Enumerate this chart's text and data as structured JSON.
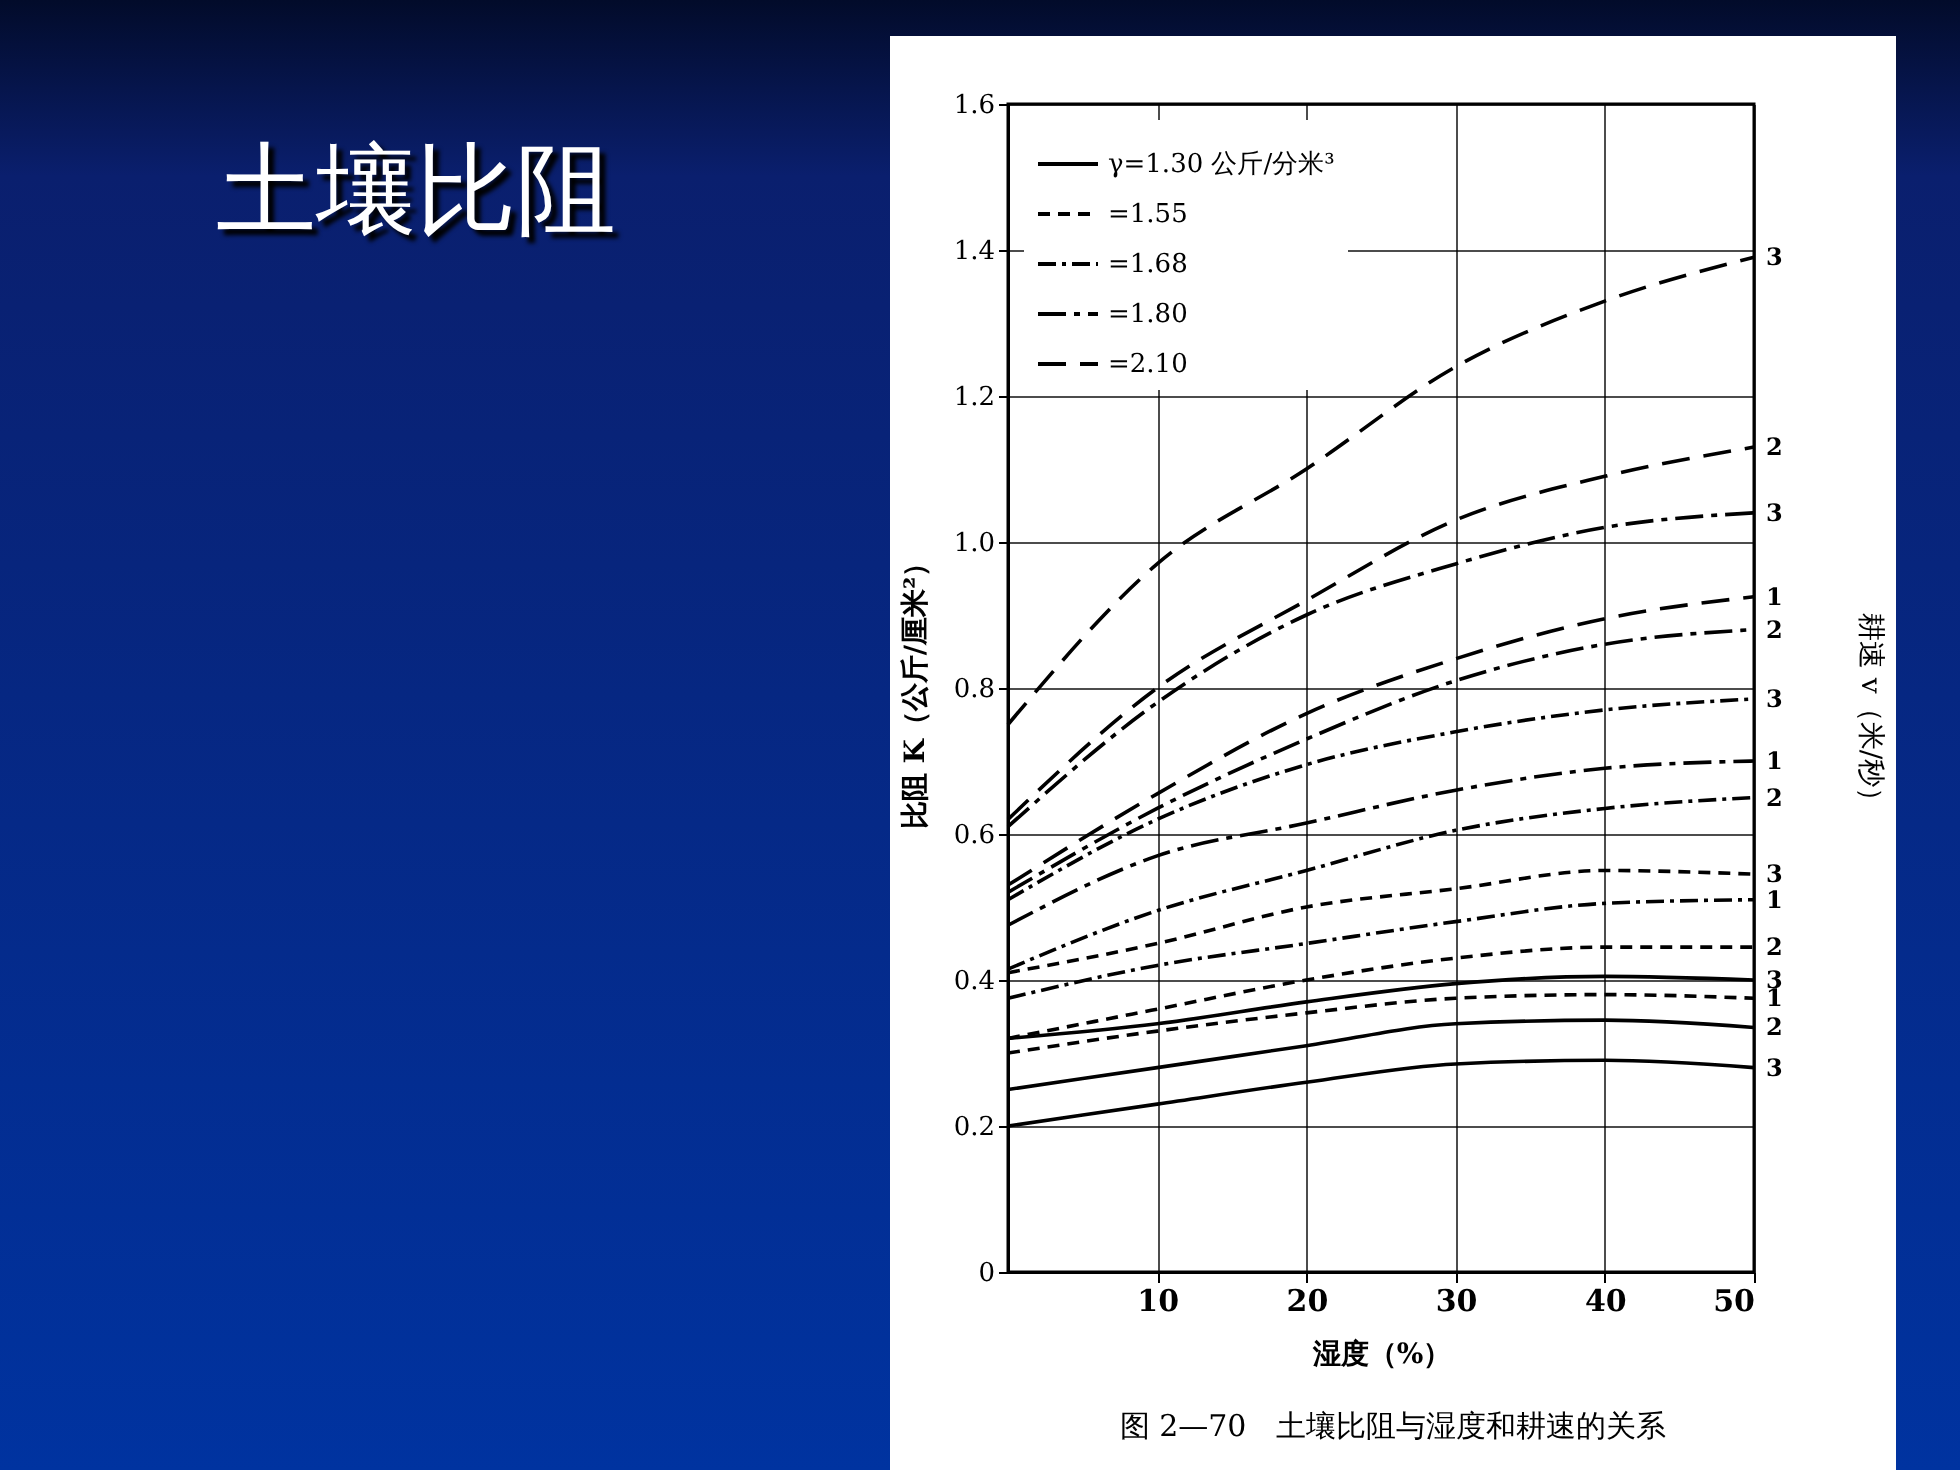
{
  "chart_data": {
    "type": "line",
    "title": "土壤比阻",
    "xlabel": "湿度（%）",
    "ylabel": "比阻 K（公斤/厘米²）",
    "x": [
      0,
      10,
      20,
      30,
      40,
      50
    ],
    "xlim": [
      0,
      50
    ],
    "xticks": [
      10,
      20,
      30,
      40,
      50
    ],
    "ylim": [
      0,
      1.6
    ],
    "yticks": [
      0,
      0.2,
      0.4,
      0.6,
      0.8,
      {
        "value": 1,
        "label": "1.0"
      },
      1.2,
      1.4,
      1.6
    ],
    "grid": true,
    "legend": "top left",
    "marker": "none",
    "series": [
      {
        "name": "γ=1.30 公斤/分米³",
        "color": "#000000",
        "line_style": "solid",
        "values": [
          0.32,
          0.34,
          0.37,
          0.395,
          0.405,
          0.4
        ]
      },
      {
        "color": "#000000",
        "line_style": "solid",
        "values": [
          0.25,
          0.28,
          0.31,
          0.34,
          0.345,
          0.335
        ]
      },
      {
        "color": "#000000",
        "line_style": "solid",
        "values": [
          0.2,
          0.23,
          0.26,
          0.285,
          0.29,
          0.28
        ]
      },
      {
        "name": "=1.55",
        "color": "#000000",
        "line_style": "dashed",
        "values": [
          0.41,
          0.45,
          0.5,
          0.525,
          0.55,
          0.545
        ]
      },
      {
        "color": "#000000",
        "line_style": "dashed",
        "values": [
          0.32,
          0.36,
          0.4,
          0.43,
          0.445,
          0.445
        ]
      },
      {
        "color": "#000000",
        "line_style": "dashed",
        "values": [
          0.3,
          0.33,
          0.355,
          0.375,
          0.38,
          0.375
        ]
      },
      {
        "name": "=1.68",
        "color": "#000000",
        "line_style": "dashdot",
        "values": [
          0.51,
          0.62,
          0.695,
          0.74,
          0.77,
          0.785
        ]
      },
      {
        "color": "#000000",
        "line_style": "dashdot",
        "values": [
          0.415,
          0.495,
          0.55,
          0.605,
          0.635,
          0.65
        ]
      },
      {
        "color": "#000000",
        "line_style": "dashdot",
        "values": [
          0.375,
          0.42,
          0.45,
          0.48,
          0.505,
          0.51
        ]
      },
      {
        "name": "=1.80",
        "color": "#000000",
        "line_style": "longdashdot",
        "values": [
          0.61,
          0.78,
          0.9,
          0.97,
          1.02,
          1.04
        ]
      },
      {
        "color": "#000000",
        "line_style": "longdashdot",
        "values": [
          0.52,
          0.635,
          0.73,
          0.81,
          0.86,
          0.88
        ]
      },
      {
        "color": "#000000",
        "line_style": "longdashdot",
        "values": [
          0.475,
          0.57,
          0.615,
          0.66,
          0.69,
          0.7
        ]
      },
      {
        "name": "=2.10",
        "color": "#000000",
        "line_style": "longdash",
        "values": [
          0.75,
          0.97,
          1.1,
          1.24,
          1.33,
          1.39
        ]
      },
      {
        "color": "#000000",
        "line_style": "longdash",
        "values": [
          0.62,
          0.8,
          0.92,
          1.03,
          1.09,
          1.13
        ]
      },
      {
        "color": "#000000",
        "line_style": "longdash",
        "values": [
          0.53,
          0.655,
          0.765,
          0.84,
          0.895,
          0.925
        ]
      }
    ],
    "annotations": [
      "图 2—70　土壤比阻与湿度和耕速的关系",
      "耕速 v（米/秒）",
      "3",
      "2",
      "3",
      "1",
      "2",
      "3",
      "1",
      "2",
      "3",
      "1",
      "2",
      "3",
      "1",
      "2",
      "3"
    ]
  }
}
